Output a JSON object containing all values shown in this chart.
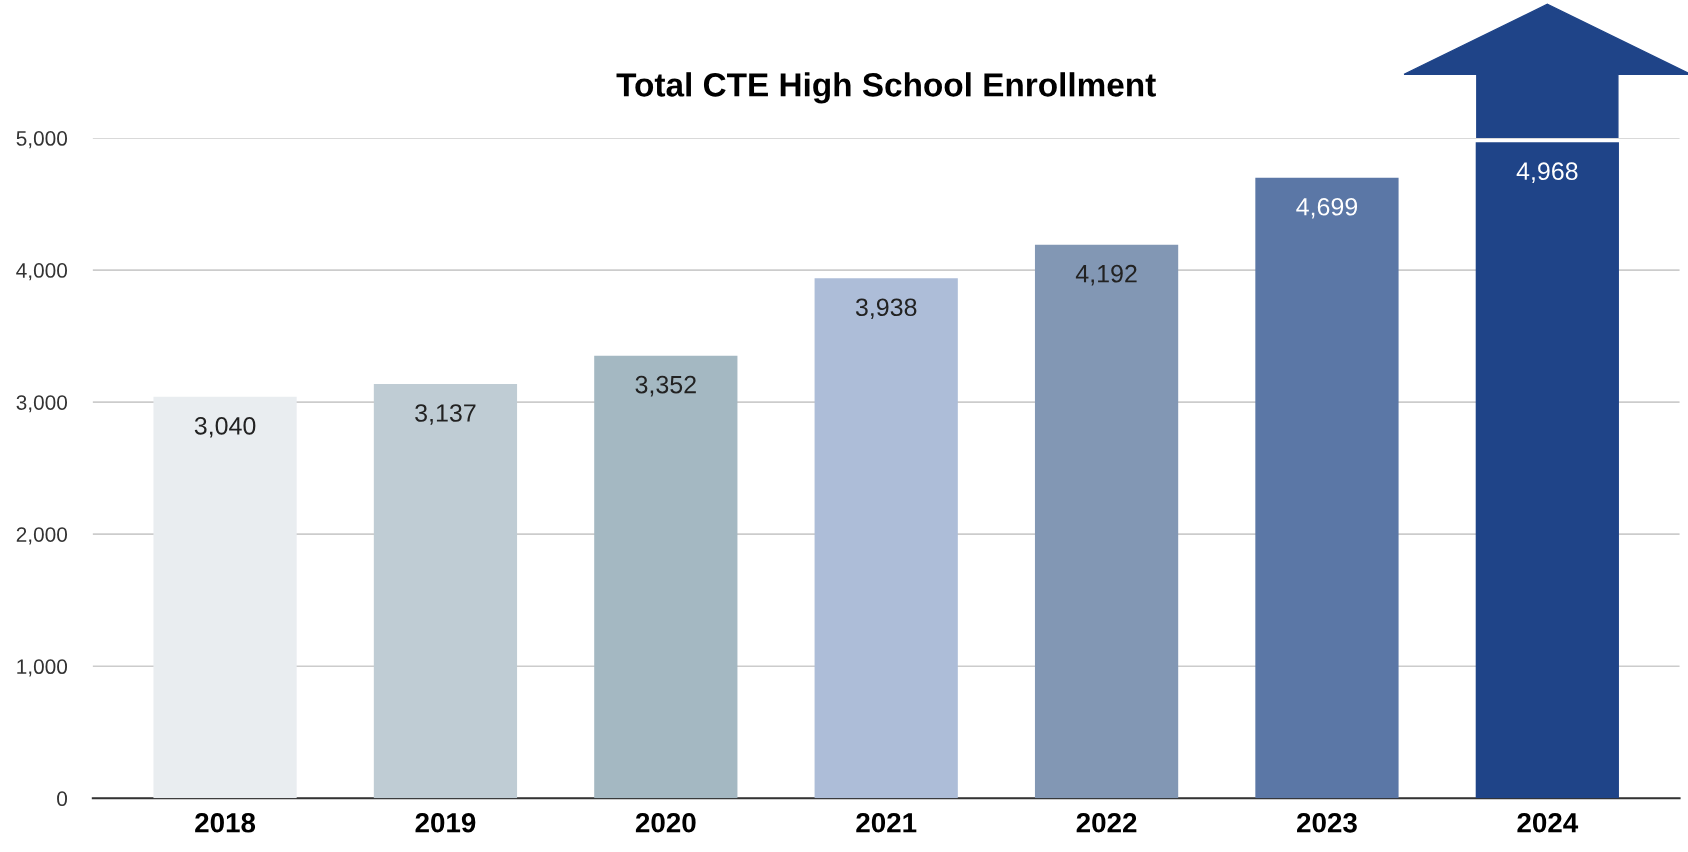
{
  "chart_data": {
    "type": "bar",
    "title": "Total CTE High School Enrollment",
    "categories": [
      "2018",
      "2019",
      "2020",
      "2021",
      "2022",
      "2023",
      "2024"
    ],
    "values": [
      3040,
      3137,
      3352,
      3938,
      4192,
      4699,
      4968
    ],
    "colors": [
      "#e9edf0",
      "#bfccd4",
      "#a4b8c2",
      "#adbdd8",
      "#8297b4",
      "#5b77a6",
      "#1f4488"
    ],
    "ylim": [
      0,
      5000
    ],
    "yticks": [
      {
        "value": 0,
        "label": "0"
      },
      {
        "value": 1000,
        "label": "1,000"
      },
      {
        "value": 2000,
        "label": "2,000"
      },
      {
        "value": 3000,
        "label": "3,000"
      },
      {
        "value": 4000,
        "label": "4,000"
      },
      {
        "value": 5000,
        "label": "5,000"
      }
    ],
    "value_labels": [
      "3,040",
      "3,137",
      "3,352",
      "3,938",
      "4,192",
      "4,699",
      "4,968"
    ],
    "grid": "y"
  }
}
